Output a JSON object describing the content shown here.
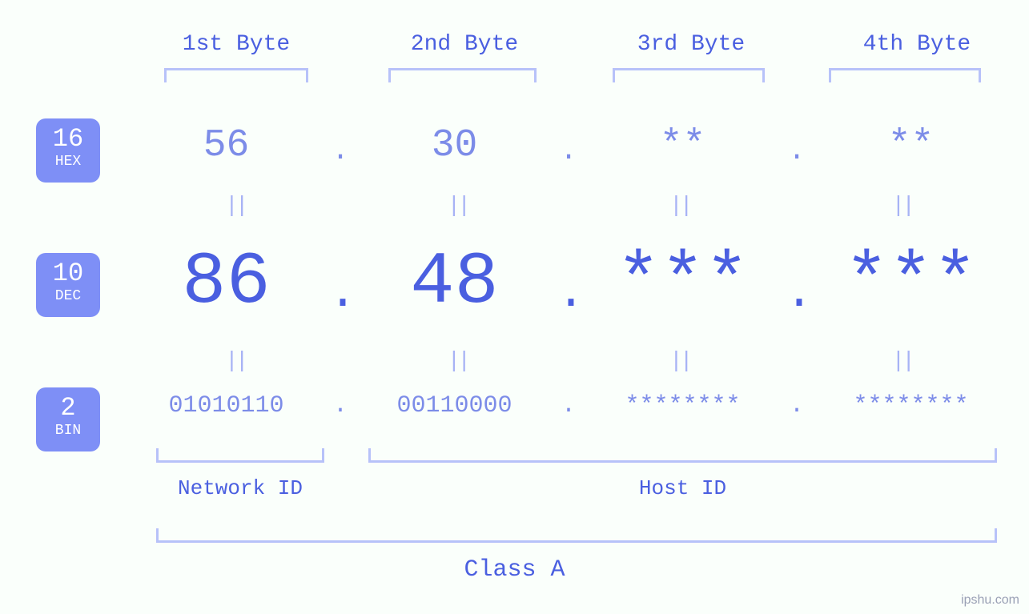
{
  "colors": {
    "background": "#fafffb",
    "primary_text": "#4a5fe0",
    "secondary_text": "#7c8ce8",
    "faint_text": "#a7b3f5",
    "bracket": "#b7c2f9",
    "badge_bg": "#7e8ff6",
    "badge_text": "#ffffff",
    "watermark": "#9aa0b5"
  },
  "byte_headers": [
    "1st Byte",
    "2nd Byte",
    "3rd Byte",
    "4th Byte"
  ],
  "badges": {
    "hex": {
      "base": "16",
      "label": "HEX"
    },
    "dec": {
      "base": "10",
      "label": "DEC"
    },
    "bin": {
      "base": "2",
      "label": "BIN"
    }
  },
  "rows": {
    "hex": {
      "font_size_px": 48,
      "values": [
        "56",
        "30",
        "**",
        "**"
      ]
    },
    "dec": {
      "font_size_px": 92,
      "values": [
        "86",
        "48",
        "***",
        "***"
      ]
    },
    "bin": {
      "font_size_px": 30,
      "values": [
        "01010110",
        "00110000",
        "********",
        "********"
      ]
    }
  },
  "separator": ".",
  "equals_glyph": "||",
  "bottom": {
    "network_id_label": "Network ID",
    "host_id_label": "Host ID",
    "class_label": "Class A"
  },
  "watermark": "ipshu.com"
}
